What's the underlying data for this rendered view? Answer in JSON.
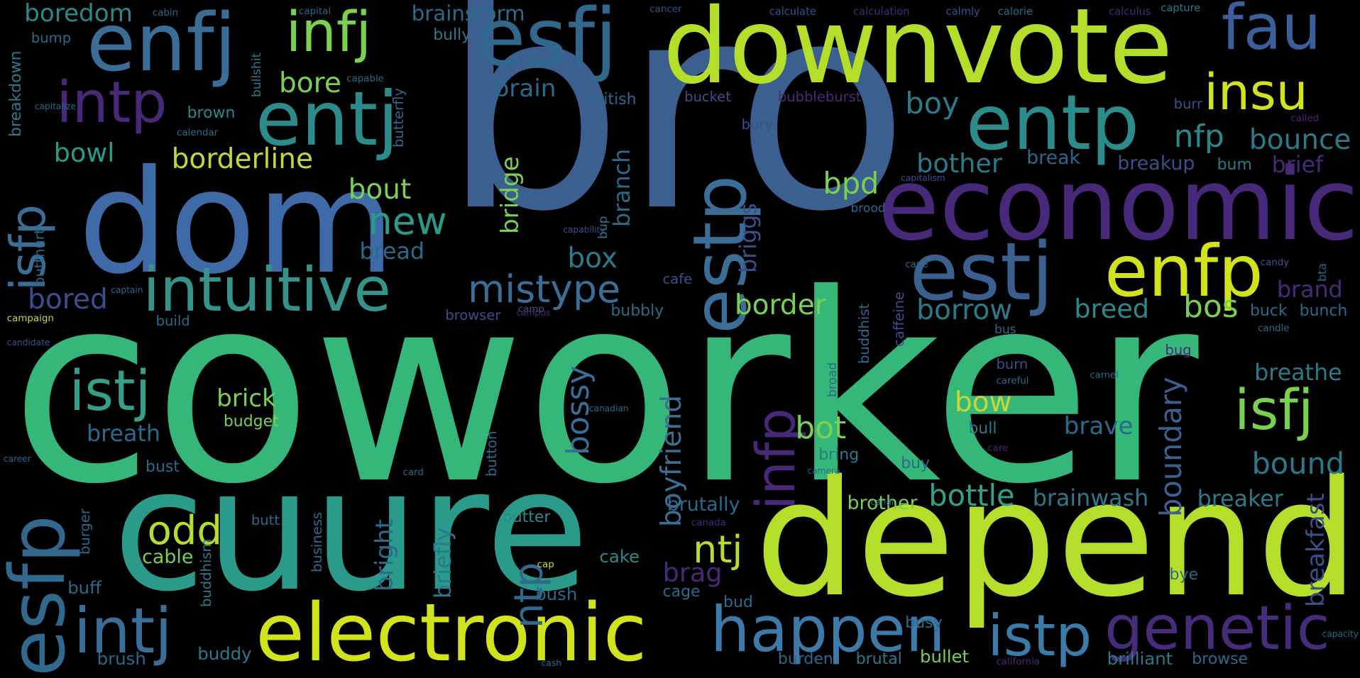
{
  "cloud": {
    "words": [
      {
        "text": "coworker",
        "color": "#35b779"
      },
      {
        "text": "bro",
        "color": "#3b5f8f"
      },
      {
        "text": "depend",
        "color": "#b5de2b"
      },
      {
        "text": "cuure",
        "color": "#2a9a8a"
      },
      {
        "text": "downvote",
        "color": "#b5de2b"
      },
      {
        "text": "dom",
        "color": "#3e6aa8"
      },
      {
        "text": "economic",
        "color": "#482878"
      },
      {
        "text": "electronic",
        "color": "#d2e21b"
      },
      {
        "text": "estj",
        "color": "#3b5f8f"
      },
      {
        "text": "esfj",
        "color": "#31688e"
      },
      {
        "text": "enfj",
        "color": "#3b6e96"
      },
      {
        "text": "entj",
        "color": "#2c8c8c"
      },
      {
        "text": "entp",
        "color": "#2c8c8c"
      },
      {
        "text": "enfp",
        "color": "#d2e21b"
      },
      {
        "text": "estp",
        "color": "#3b6e96"
      },
      {
        "text": "esfp",
        "color": "#31688e"
      },
      {
        "text": "intuitive",
        "color": "#35938c"
      },
      {
        "text": "happen",
        "color": "#3e7aa8"
      },
      {
        "text": "genetic",
        "color": "#472c7a"
      },
      {
        "text": "intj",
        "color": "#3b6e96"
      },
      {
        "text": "istp",
        "color": "#3b7ba8"
      },
      {
        "text": "istj",
        "color": "#35a08a"
      },
      {
        "text": "isfj",
        "color": "#7ad151"
      },
      {
        "text": "fau",
        "color": "#3b5f9a"
      },
      {
        "text": "insu",
        "color": "#d2e21b"
      },
      {
        "text": "infj",
        "color": "#7ad151"
      },
      {
        "text": "intp",
        "color": "#482878"
      },
      {
        "text": "infp",
        "color": "#482878"
      },
      {
        "text": "isfp",
        "color": "#3b6e96"
      },
      {
        "text": "odd",
        "color": "#b5de2b"
      },
      {
        "text": "mistype",
        "color": "#3b6e96"
      },
      {
        "text": "ntj",
        "color": "#b5de2b"
      },
      {
        "text": "ntp",
        "color": "#31688e"
      },
      {
        "text": "new",
        "color": "#2a9a8a"
      },
      {
        "text": "boyfriend",
        "color": "#3b6e96"
      },
      {
        "text": "boundary",
        "color": "#3b5f8f"
      },
      {
        "text": "bossy",
        "color": "#3b6e96"
      },
      {
        "text": "bottle",
        "color": "#35a08a"
      },
      {
        "text": "brainwash",
        "color": "#2a7a8a"
      },
      {
        "text": "breakfast",
        "color": "#3b4f8f"
      },
      {
        "text": "borderline",
        "color": "#c4d834"
      },
      {
        "text": "border",
        "color": "#7ad151"
      },
      {
        "text": "borrow",
        "color": "#2a7a8a"
      },
      {
        "text": "bother",
        "color": "#2a7a8a"
      },
      {
        "text": "bounce",
        "color": "#2a7a8a"
      },
      {
        "text": "bound",
        "color": "#2a7a8a"
      },
      {
        "text": "breathe",
        "color": "#2a7a8a"
      },
      {
        "text": "breaker",
        "color": "#2a7a8a"
      },
      {
        "text": "breath",
        "color": "#2a6a8a"
      },
      {
        "text": "brick",
        "color": "#7ad151"
      },
      {
        "text": "bowl",
        "color": "#2a9a8a"
      },
      {
        "text": "bout",
        "color": "#7ad151"
      },
      {
        "text": "bored",
        "color": "#3b4f8f"
      },
      {
        "text": "boredom",
        "color": "#2a8a8a"
      },
      {
        "text": "brainstorm",
        "color": "#2a6a8a"
      },
      {
        "text": "brain",
        "color": "#2a6a8a"
      },
      {
        "text": "box",
        "color": "#2a7a8a"
      },
      {
        "text": "bot",
        "color": "#7ad151"
      },
      {
        "text": "bow",
        "color": "#c4d834"
      },
      {
        "text": "bos",
        "color": "#7ad151"
      },
      {
        "text": "breed",
        "color": "#2a8a8a"
      },
      {
        "text": "brave",
        "color": "#2a6a8a"
      },
      {
        "text": "boy",
        "color": "#2a7a8a"
      },
      {
        "text": "nfp",
        "color": "#2a8a8a"
      },
      {
        "text": "bpd",
        "color": "#7ad151"
      },
      {
        "text": "bore",
        "color": "#7ad151"
      },
      {
        "text": "bread",
        "color": "#2a6a8a"
      },
      {
        "text": "brag",
        "color": "#482878"
      },
      {
        "text": "bridge",
        "color": "#7ad151"
      },
      {
        "text": "branch",
        "color": "#2a6a8a"
      },
      {
        "text": "briggs",
        "color": "#3b4f8f"
      },
      {
        "text": "brief",
        "color": "#482878"
      },
      {
        "text": "brand",
        "color": "#472c7a"
      },
      {
        "text": "bright",
        "color": "#2a6a8a"
      },
      {
        "text": "briefly",
        "color": "#2a7a8a"
      },
      {
        "text": "brutally",
        "color": "#2a6a8a"
      },
      {
        "text": "brother",
        "color": "#7ad151"
      },
      {
        "text": "break",
        "color": "#2a6a8a"
      },
      {
        "text": "breakup",
        "color": "#3b4f8f"
      },
      {
        "text": "bum",
        "color": "#2a7a8a"
      },
      {
        "text": "bunch",
        "color": "#2a6a8a"
      },
      {
        "text": "buck",
        "color": "#2a6a8a"
      },
      {
        "text": "bud",
        "color": "#2a6a8a"
      },
      {
        "text": "bye",
        "color": "#2a6a8a"
      },
      {
        "text": "bush",
        "color": "#2a6a8a"
      },
      {
        "text": "cage",
        "color": "#2a6a8a"
      },
      {
        "text": "cake",
        "color": "#2a8a8a"
      },
      {
        "text": "butter",
        "color": "#2a8a8a"
      },
      {
        "text": "cable",
        "color": "#7ad151"
      },
      {
        "text": "buff",
        "color": "#2a6a8a"
      },
      {
        "text": "brush",
        "color": "#2a6a8a"
      },
      {
        "text": "buddy",
        "color": "#2a7a8a"
      },
      {
        "text": "brutal",
        "color": "#2a7a8a"
      },
      {
        "text": "burden",
        "color": "#2a6a8a"
      },
      {
        "text": "bullet",
        "color": "#7ad151"
      },
      {
        "text": "busy",
        "color": "#2a6a8a"
      },
      {
        "text": "brilliant",
        "color": "#2a7a8a"
      },
      {
        "text": "browse",
        "color": "#2a6a8a"
      },
      {
        "text": "bust",
        "color": "#2a6a8a"
      },
      {
        "text": "budget",
        "color": "#7ad151"
      },
      {
        "text": "bull",
        "color": "#2a7a8a"
      },
      {
        "text": "buy",
        "color": "#2a6a8a"
      },
      {
        "text": "bring",
        "color": "#2a7a8a"
      },
      {
        "text": "butt",
        "color": "#2a6a8a"
      },
      {
        "text": "bully",
        "color": "#2a7a8a"
      },
      {
        "text": "bump",
        "color": "#2a6a8a"
      },
      {
        "text": "brown",
        "color": "#2a8a8a"
      },
      {
        "text": "british",
        "color": "#2a6a8a"
      },
      {
        "text": "bucket",
        "color": "#3b4f8f"
      },
      {
        "text": "bubbleburst",
        "color": "#472c7a"
      },
      {
        "text": "burr",
        "color": "#3b4f8f"
      },
      {
        "text": "bury",
        "color": "#3b4f8f"
      },
      {
        "text": "bug",
        "color": "#482878"
      },
      {
        "text": "burn",
        "color": "#3b4f8f"
      },
      {
        "text": "bubbly",
        "color": "#2a6a8a"
      },
      {
        "text": "browser",
        "color": "#3b4f8f"
      },
      {
        "text": "build",
        "color": "#2a6a8a"
      },
      {
        "text": "cafe",
        "color": "#3b4f8f"
      },
      {
        "text": "butterfly",
        "color": "#2a6a8a"
      },
      {
        "text": "bullshit",
        "color": "#2a7a8a"
      },
      {
        "text": "breakdown",
        "color": "#2a7a8a"
      },
      {
        "text": "butthurt",
        "color": "#2a6a8a"
      },
      {
        "text": "buddhist",
        "color": "#2a6a8a"
      },
      {
        "text": "caffeine",
        "color": "#3b4f8f"
      },
      {
        "text": "brood",
        "color": "#2a6a8a"
      },
      {
        "text": "broad",
        "color": "#2a6a8a"
      },
      {
        "text": "button",
        "color": "#2a6a8a"
      },
      {
        "text": "buddhism",
        "color": "#2a7a8a"
      },
      {
        "text": "business",
        "color": "#2a6a8a"
      },
      {
        "text": "burger",
        "color": "#2a6a8a"
      },
      {
        "text": "bup",
        "color": "#2a7a8a"
      },
      {
        "text": "campaign",
        "color": "#c4d834"
      },
      {
        "text": "capital",
        "color": "#2a6a8a"
      },
      {
        "text": "calculate",
        "color": "#3b4f8f"
      },
      {
        "text": "calculation",
        "color": "#482878"
      },
      {
        "text": "calmly",
        "color": "#3b4f8f"
      },
      {
        "text": "calorie",
        "color": "#2a6a8a"
      },
      {
        "text": "calculus",
        "color": "#482878"
      },
      {
        "text": "capture",
        "color": "#2a7a8a"
      },
      {
        "text": "cancer",
        "color": "#3b4f8f"
      },
      {
        "text": "called",
        "color": "#482878"
      },
      {
        "text": "calendar",
        "color": "#2a6a8a"
      },
      {
        "text": "capable",
        "color": "#2a6a8a"
      },
      {
        "text": "careful",
        "color": "#2a6a8a"
      },
      {
        "text": "camel",
        "color": "#2a6a8a"
      },
      {
        "text": "candle",
        "color": "#2a6a8a"
      },
      {
        "text": "card",
        "color": "#2a6a8a"
      },
      {
        "text": "care",
        "color": "#482878"
      },
      {
        "text": "candy",
        "color": "#3b4f8f"
      },
      {
        "text": "bta",
        "color": "#2a6a8a"
      },
      {
        "text": "bus",
        "color": "#2a6a8a"
      },
      {
        "text": "camp",
        "color": "#3b4f8f"
      },
      {
        "text": "california",
        "color": "#482878"
      },
      {
        "text": "cane",
        "color": "#2a6a8a"
      },
      {
        "text": "canada",
        "color": "#482878"
      },
      {
        "text": "cap",
        "color": "#c4d834"
      },
      {
        "text": "cabin",
        "color": "#2a6a8a"
      },
      {
        "text": "candidate",
        "color": "#3b4f8f"
      },
      {
        "text": "career",
        "color": "#2a6a8a"
      },
      {
        "text": "capability",
        "color": "#3b4f8f"
      },
      {
        "text": "capitalism",
        "color": "#3b4f8f"
      },
      {
        "text": "capitalize",
        "color": "#2a6a8a"
      },
      {
        "text": "camera",
        "color": "#2a6a8a"
      },
      {
        "text": "canadian",
        "color": "#2a6a8a"
      },
      {
        "text": "canal",
        "color": "#2a6a8a"
      },
      {
        "text": "campus",
        "color": "#482878"
      },
      {
        "text": "capacity",
        "color": "#2a6a8a"
      },
      {
        "text": "captain",
        "color": "#2a6a8a"
      },
      {
        "text": "cash",
        "color": "#2a6a8a"
      }
    ]
  }
}
